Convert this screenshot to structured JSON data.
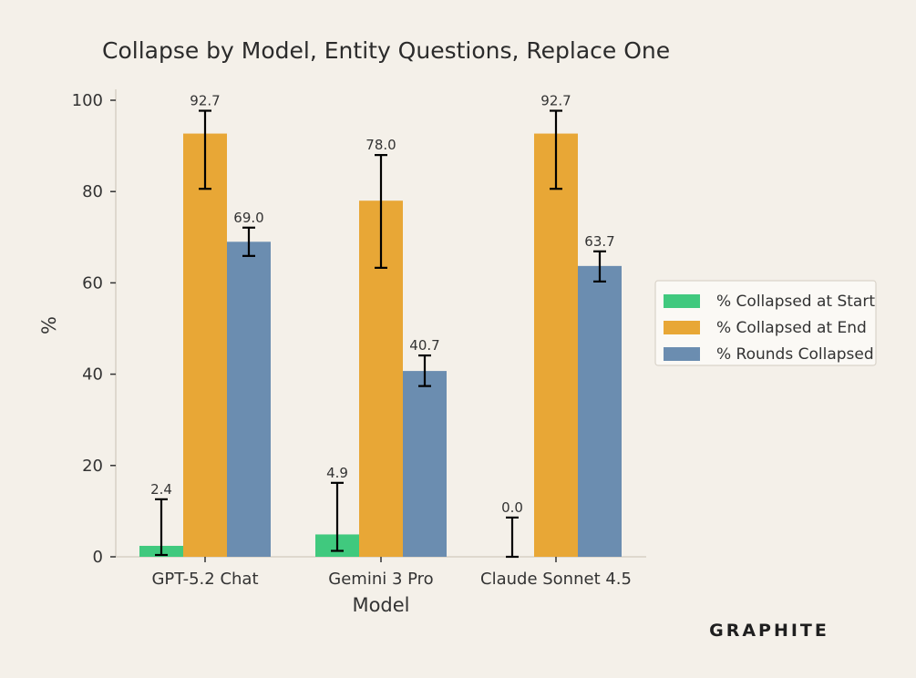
{
  "chart_data": {
    "type": "bar",
    "title": "Collapse by Model, Entity Questions, Replace One",
    "xlabel": "Model",
    "ylabel": "%",
    "ylim": [
      0,
      100
    ],
    "yticks": [
      "0",
      "20",
      "40",
      "60",
      "80",
      "100"
    ],
    "categories": [
      "GPT-5.2 Chat",
      "Gemini 3 Pro",
      "Claude Sonnet 4.5"
    ],
    "series": [
      {
        "name": "% Collapsed at Start",
        "color": "#40c97e",
        "values": [
          2.4,
          4.9,
          0.0
        ],
        "labels": [
          "2.4",
          "4.9",
          "0.0"
        ],
        "err_low": [
          0.4,
          1.3,
          0.0
        ],
        "err_high": [
          12.6,
          16.2,
          8.6
        ]
      },
      {
        "name": "% Collapsed at End",
        "color": "#e8a736",
        "values": [
          92.7,
          78.0,
          92.7
        ],
        "labels": [
          "92.7",
          "78.0",
          "92.7"
        ],
        "err_low": [
          80.6,
          63.3,
          80.6
        ],
        "err_high": [
          97.7,
          88.0,
          97.7
        ]
      },
      {
        "name": "% Rounds Collapsed",
        "color": "#6b8db0",
        "values": [
          69.0,
          40.7,
          63.7
        ],
        "labels": [
          "69.0",
          "40.7",
          "63.7"
        ],
        "err_low": [
          65.9,
          37.4,
          60.3
        ],
        "err_high": [
          72.1,
          44.1,
          66.9
        ]
      }
    ],
    "legend_position": "right",
    "grid": false
  },
  "brand": {
    "logo_text": "GRAPHITE"
  }
}
